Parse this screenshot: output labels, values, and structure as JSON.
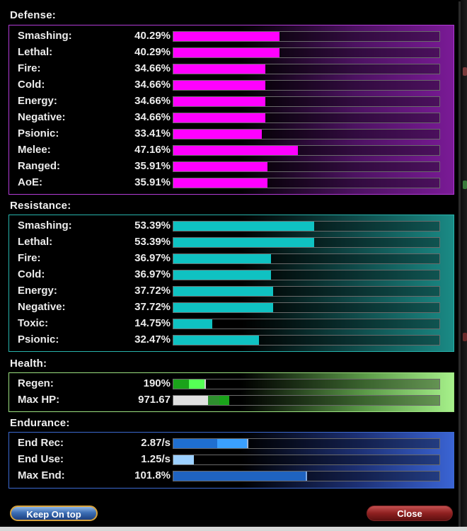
{
  "sections": {
    "defense": "Defense:",
    "resistance": "Resistance:",
    "health": "Health:",
    "endurance": "Endurance:"
  },
  "defense": [
    {
      "label": "Smashing:",
      "value": "40.29%",
      "fraction": 0.4
    },
    {
      "label": "Lethal:",
      "value": "40.29%",
      "fraction": 0.4
    },
    {
      "label": "Fire:",
      "value": "34.66%",
      "fraction": 0.345
    },
    {
      "label": "Cold:",
      "value": "34.66%",
      "fraction": 0.345
    },
    {
      "label": "Energy:",
      "value": "34.66%",
      "fraction": 0.345
    },
    {
      "label": "Negative:",
      "value": "34.66%",
      "fraction": 0.345
    },
    {
      "label": "Psionic:",
      "value": "33.41%",
      "fraction": 0.332
    },
    {
      "label": "Melee:",
      "value": "47.16%",
      "fraction": 0.468
    },
    {
      "label": "Ranged:",
      "value": "35.91%",
      "fraction": 0.355
    },
    {
      "label": "AoE:",
      "value": "35.91%",
      "fraction": 0.355
    }
  ],
  "resistance": [
    {
      "label": "Smashing:",
      "value": "53.39%",
      "fraction": 0.53
    },
    {
      "label": "Lethal:",
      "value": "53.39%",
      "fraction": 0.53
    },
    {
      "label": "Fire:",
      "value": "36.97%",
      "fraction": 0.367
    },
    {
      "label": "Cold:",
      "value": "36.97%",
      "fraction": 0.367
    },
    {
      "label": "Energy:",
      "value": "37.72%",
      "fraction": 0.375
    },
    {
      "label": "Negative:",
      "value": "37.72%",
      "fraction": 0.375
    },
    {
      "label": "Toxic:",
      "value": "14.75%",
      "fraction": 0.145
    },
    {
      "label": "Psionic:",
      "value": "32.47%",
      "fraction": 0.322
    }
  ],
  "health": [
    {
      "label": "Regen:",
      "value": "190%"
    },
    {
      "label": "Max HP:",
      "value": "971.67"
    }
  ],
  "endurance": [
    {
      "label": "End Rec:",
      "value": "2.87/s"
    },
    {
      "label": "End Use:",
      "value": "1.25/s"
    },
    {
      "label": "Max End:",
      "value": "101.8%"
    }
  ],
  "buttons": {
    "keep_on_top": "Keep On top",
    "close": "Close"
  },
  "colors": {
    "defense": "#ff00ff",
    "resistance": "#0fc2c2",
    "health_green": "#1aa31a",
    "health_bright": "#55ff55",
    "health_white": "#e0e0e0",
    "endurance_blue": "#1f6fd0",
    "endurance_bright": "#3aa0ff",
    "endurance_light": "#9cd0ff"
  }
}
